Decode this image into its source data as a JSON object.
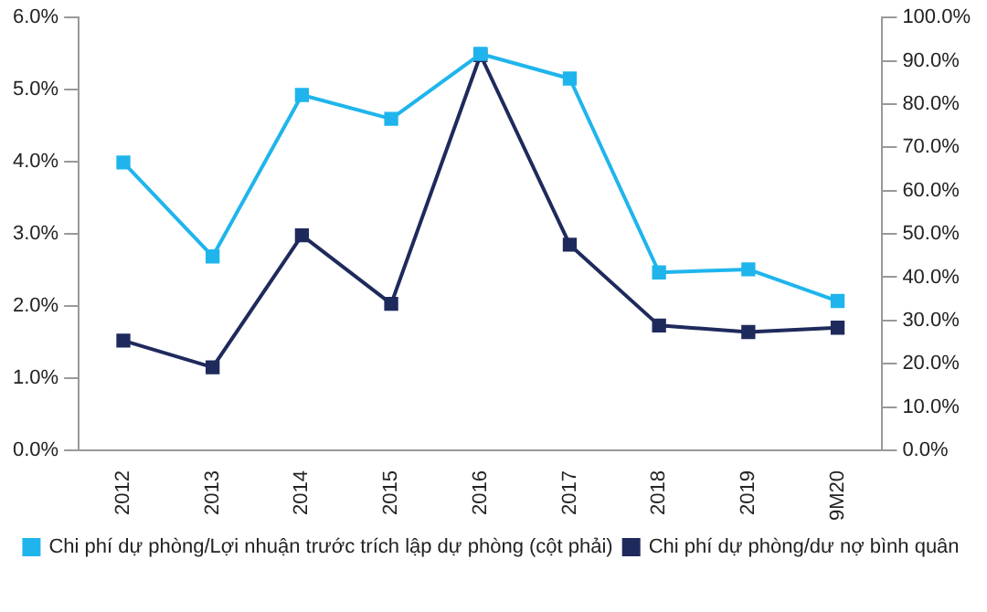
{
  "chart_data": {
    "type": "line",
    "categories": [
      "2012",
      "2013",
      "2014",
      "2015",
      "2016",
      "2017",
      "2018",
      "2019",
      "9M20"
    ],
    "series": [
      {
        "name": "Chi phí dự phòng/dư nợ bình quân",
        "color": "#1f2a5c",
        "values": [
          1.52,
          1.15,
          2.98,
          2.03,
          5.48,
          2.85,
          1.73,
          1.64,
          1.7
        ]
      },
      {
        "name": "Chi phí dự phòng/Lợi nhuận trước trích lập dự phòng (cột phải)",
        "color": "#1fb5ec",
        "axis": "y2",
        "values": [
          66.5,
          44.8,
          82.1,
          76.6,
          91.6,
          85.9,
          41.1,
          41.8,
          34.5
        ]
      }
    ],
    "ylim": [
      0,
      6
    ],
    "yticks": [
      {
        "value": 0,
        "label": "0.0%"
      },
      {
        "value": 1,
        "label": "1.0%"
      },
      {
        "value": 2,
        "label": "2.0%"
      },
      {
        "value": 3,
        "label": "3.0%"
      },
      {
        "value": 4,
        "label": "4.0%"
      },
      {
        "value": 5,
        "label": "5.0%"
      },
      {
        "value": 6,
        "label": "6.0%"
      }
    ],
    "y2lim": [
      0,
      100
    ],
    "y2ticks": [
      {
        "value": 0,
        "label": "0.0%"
      },
      {
        "value": 10,
        "label": "10.0%"
      },
      {
        "value": 20,
        "label": "20.0%"
      },
      {
        "value": 30,
        "label": "30.0%"
      },
      {
        "value": 40,
        "label": "40.0%"
      },
      {
        "value": 50,
        "label": "50.0%"
      },
      {
        "value": 60,
        "label": "60.0%"
      },
      {
        "value": 70,
        "label": "70.0%"
      },
      {
        "value": 80,
        "label": "80.0%"
      },
      {
        "value": 90,
        "label": "90.0%"
      },
      {
        "value": 100,
        "label": "100.0%"
      }
    ],
    "grid": false,
    "legend": "bottom",
    "marker": "square",
    "line_style": "solid"
  }
}
